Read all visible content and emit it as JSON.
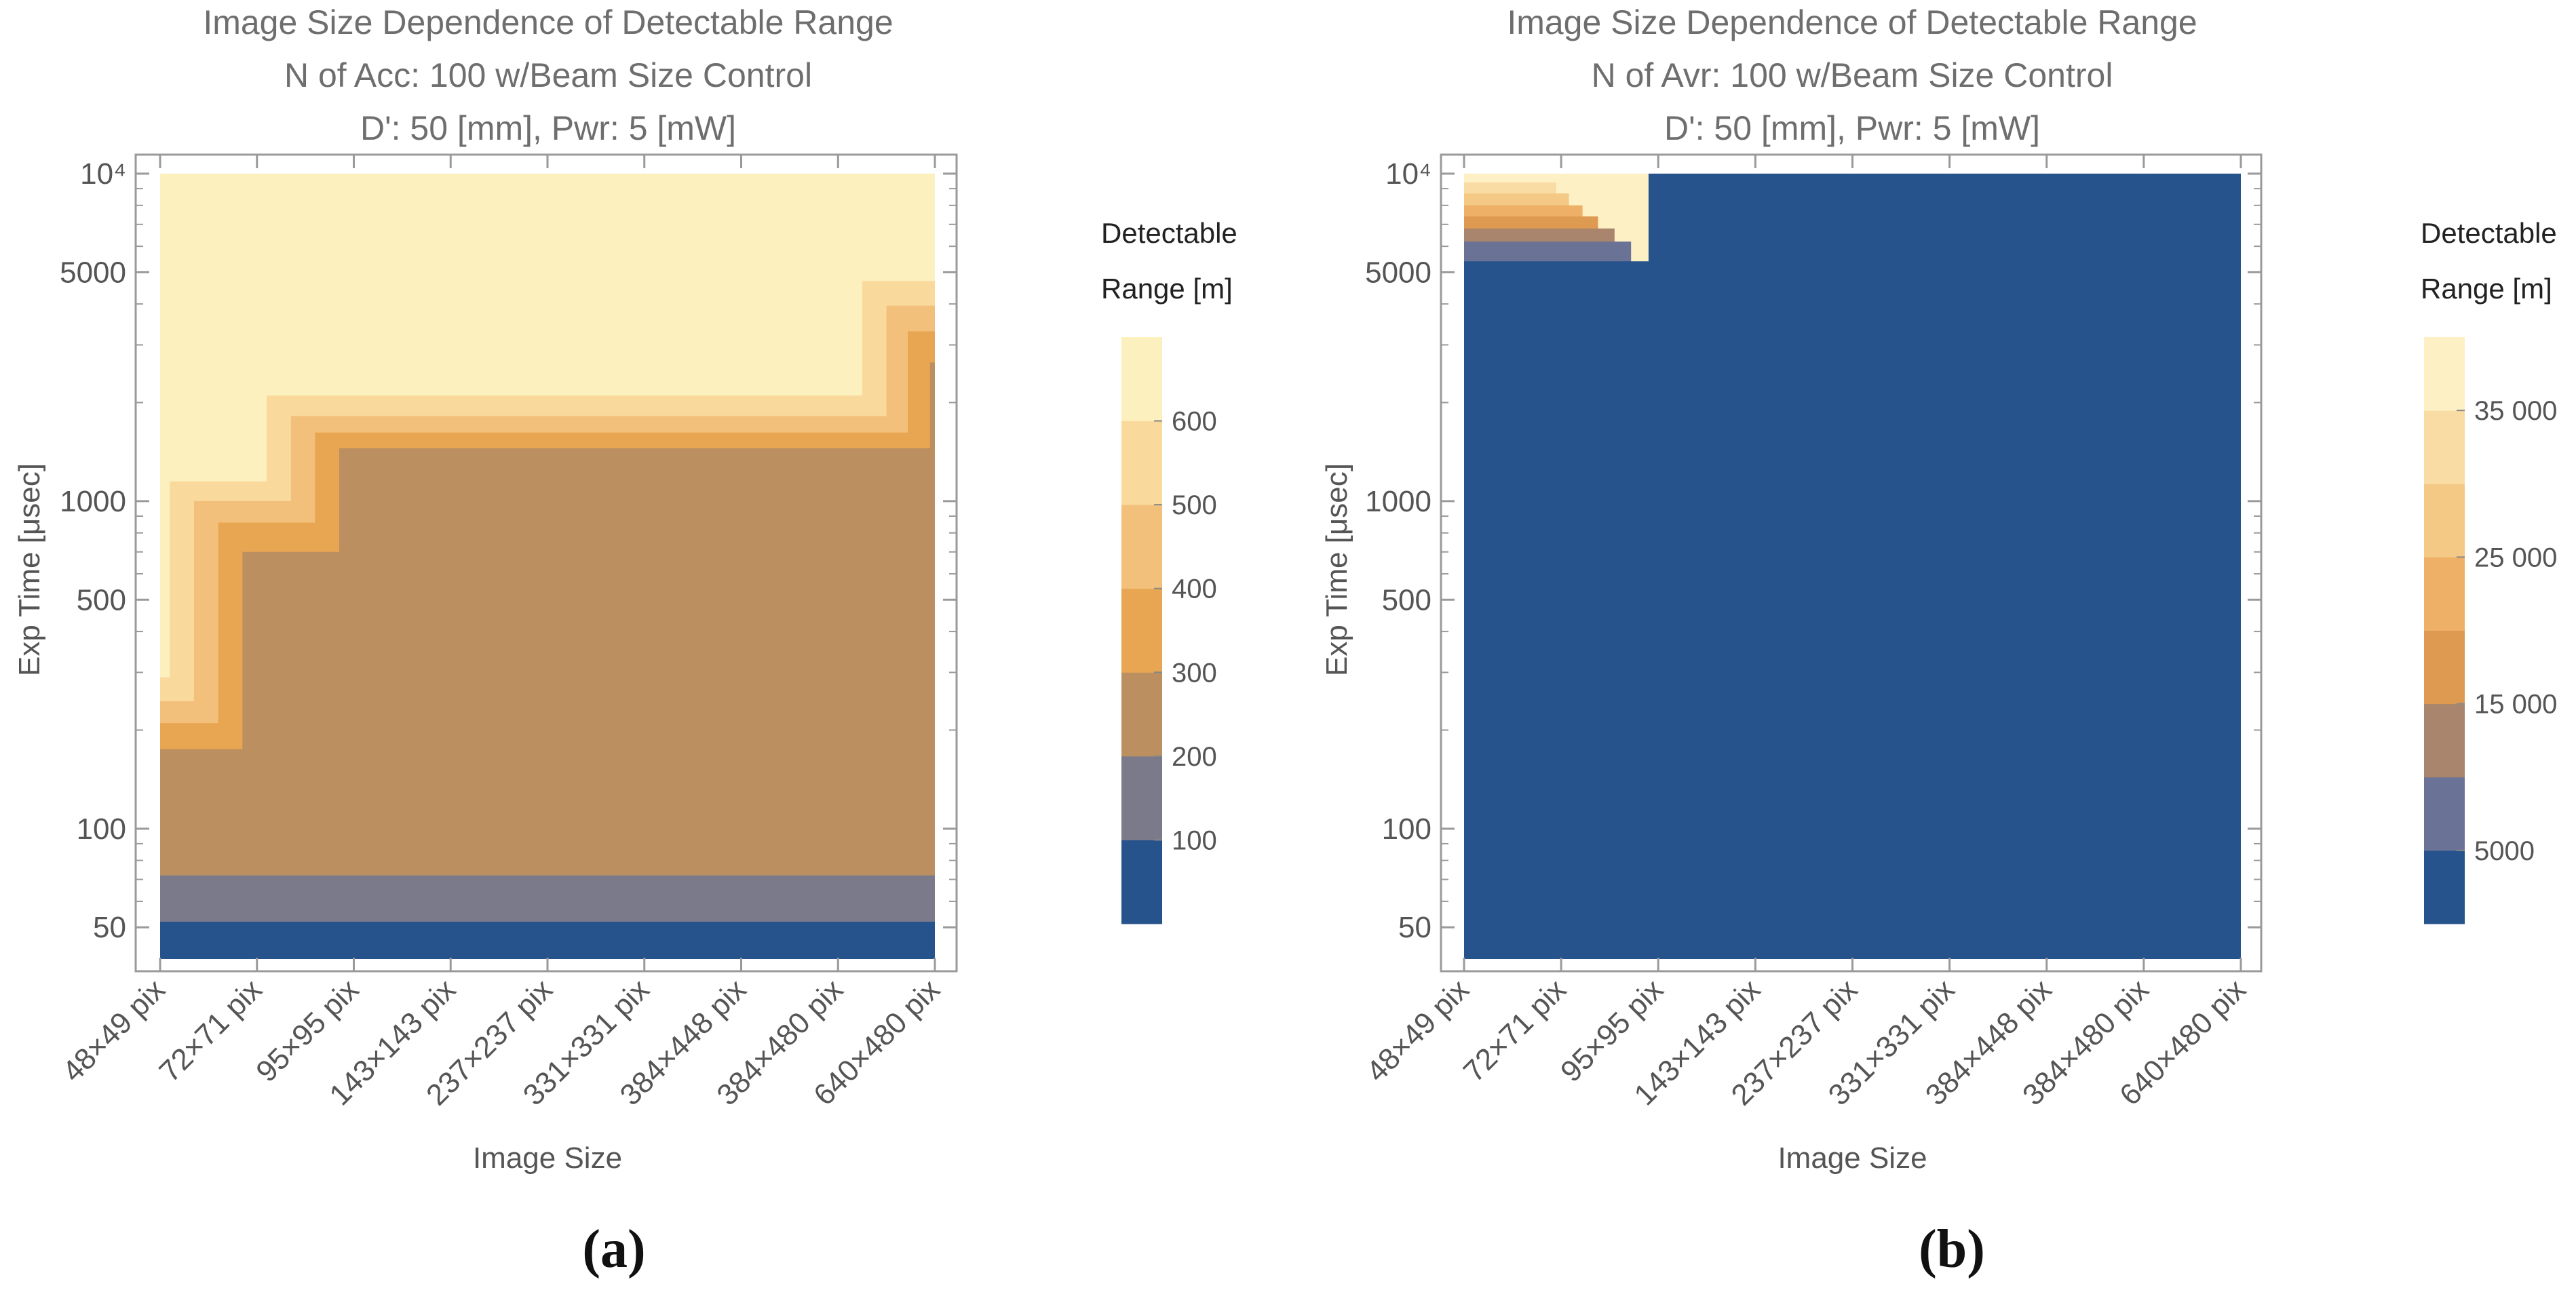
{
  "chart_data": [
    {
      "type": "contour",
      "panel_label": "(a)",
      "title": [
        "Image Size Dependence of Detectable Range",
        "N of Acc: 100 w/Beam Size Control",
        "D': 50 [mm], Pwr: 5 [mW]"
      ],
      "xlabel": "Image Size",
      "ylabel": "Exp Time [μsec]",
      "yscale": "log",
      "ylim": [
        40,
        10000
      ],
      "categories": [
        "48×49 pix",
        "72×71 pix",
        "95×95 pix",
        "143×143 pix",
        "237×237 pix",
        "331×331 pix",
        "384×448 pix",
        "384×480 pix",
        "640×480 pix"
      ],
      "y_ticks": [
        {
          "value": 50,
          "label": "50"
        },
        {
          "value": 100,
          "label": "100"
        },
        {
          "value": 500,
          "label": "500"
        },
        {
          "value": 1000,
          "label": "1000"
        },
        {
          "value": 5000,
          "label": "5000"
        },
        {
          "value": 10000,
          "label": "10⁴"
        }
      ],
      "legend": {
        "title": [
          "Detectable",
          "Range [m]"
        ],
        "levels": [
          0,
          100,
          200,
          300,
          400,
          500,
          600,
          700
        ],
        "tick_labels": [
          "100",
          "200",
          "300",
          "400",
          "500",
          "600"
        ],
        "colors": [
          "#27538c",
          "#7a7a8a",
          "#bb8f60",
          "#e8a552",
          "#f2c07a",
          "#f9d99c",
          "#fdf0bf"
        ]
      },
      "regions": [
        {
          "range": "0-100 m",
          "color": "#27538c",
          "boundary": [
            [
              0,
              52
            ],
            [
              8,
              52
            ]
          ]
        },
        {
          "range": "100-200 m",
          "color": "#7a7a8a",
          "boundary": [
            [
              0,
              72
            ],
            [
              8,
              72
            ]
          ]
        },
        {
          "range": "200-300 m",
          "color": "#bb8f60",
          "boundary": [
            [
              0,
              175
            ],
            [
              0.85,
              175
            ],
            [
              0.85,
              700
            ],
            [
              1.85,
              700
            ],
            [
              1.85,
              1450
            ],
            [
              7.95,
              1450
            ],
            [
              7.95,
              2650
            ],
            [
              8,
              2650
            ]
          ]
        },
        {
          "range": "300-400 m",
          "color": "#e8a552",
          "boundary": [
            [
              0,
              210
            ],
            [
              0.6,
              210
            ],
            [
              0.6,
              860
            ],
            [
              1.6,
              860
            ],
            [
              1.6,
              1620
            ],
            [
              7.72,
              1620
            ],
            [
              7.72,
              3300
            ],
            [
              8,
              3300
            ]
          ]
        },
        {
          "range": "400-500 m",
          "color": "#f2c07a",
          "boundary": [
            [
              0,
              245
            ],
            [
              0.35,
              245
            ],
            [
              0.35,
              1000
            ],
            [
              1.35,
              1000
            ],
            [
              1.35,
              1820
            ],
            [
              7.5,
              1820
            ],
            [
              7.5,
              3950
            ],
            [
              8,
              3950
            ]
          ]
        },
        {
          "range": "500-600 m",
          "color": "#f9d99c",
          "boundary": [
            [
              0,
              290
            ],
            [
              0.1,
              290
            ],
            [
              0.1,
              1150
            ],
            [
              1.1,
              1150
            ],
            [
              1.1,
              2100
            ],
            [
              7.25,
              2100
            ],
            [
              7.25,
              4700
            ],
            [
              8,
              4700
            ]
          ]
        },
        {
          "range": "600-700 m",
          "color": "#fdf0bf",
          "boundary": [
            [
              0,
              10000
            ],
            [
              8,
              10000
            ]
          ]
        }
      ]
    },
    {
      "type": "contour",
      "panel_label": "(b)",
      "title": [
        "Image Size Dependence of Detectable Range",
        "N of Avr: 100 w/Beam Size Control",
        "D': 50 [mm], Pwr: 5 [mW]"
      ],
      "xlabel": "Image Size",
      "ylabel": "Exp Time [μsec]",
      "yscale": "log",
      "ylim": [
        40,
        10000
      ],
      "categories": [
        "48×49 pix",
        "72×71 pix",
        "95×95 pix",
        "143×143 pix",
        "237×237 pix",
        "331×331 pix",
        "384×448 pix",
        "384×480 pix",
        "640×480 pix"
      ],
      "y_ticks": [
        {
          "value": 50,
          "label": "50"
        },
        {
          "value": 100,
          "label": "100"
        },
        {
          "value": 500,
          "label": "500"
        },
        {
          "value": 1000,
          "label": "1000"
        },
        {
          "value": 5000,
          "label": "5000"
        },
        {
          "value": 10000,
          "label": "10⁴"
        }
      ],
      "legend": {
        "title": [
          "Detectable",
          "Range [m]"
        ],
        "levels": [
          0,
          5000,
          10000,
          15000,
          20000,
          25000,
          30000,
          35000,
          40000
        ],
        "tick_labels": [
          "5000",
          "15 000",
          "25 000",
          "35 000"
        ],
        "tick_values": [
          5000,
          15000,
          25000,
          35000
        ],
        "colors": [
          "#27538c",
          "#6a7396",
          "#a8856c",
          "#df9a52",
          "#eeb066",
          "#f4c885",
          "#f9dca3",
          "#fdf0c4"
        ]
      },
      "regions": [
        {
          "range": "0-5000 m",
          "color": "#27538c",
          "boundary": [
            [
              0,
              5400
            ],
            [
              1.9,
              5400
            ],
            [
              1.9,
              10000
            ],
            [
              8,
              10000
            ]
          ]
        },
        {
          "range": "5000-10000 m",
          "color": "#6a7396",
          "boundary": [
            [
              0,
              6200
            ],
            [
              1.72,
              6200
            ],
            [
              1.72,
              10000
            ]
          ]
        },
        {
          "range": "10000-15000 m",
          "color": "#a8856c",
          "boundary": [
            [
              0,
              6800
            ],
            [
              1.55,
              6800
            ],
            [
              1.55,
              10000
            ]
          ]
        },
        {
          "range": "15000-20000 m",
          "color": "#df9a52",
          "boundary": [
            [
              0,
              7400
            ],
            [
              1.38,
              7400
            ],
            [
              1.38,
              10000
            ]
          ]
        },
        {
          "range": "20000-25000 m",
          "color": "#eeb066",
          "boundary": [
            [
              0,
              8000
            ],
            [
              1.22,
              8000
            ],
            [
              1.22,
              10000
            ]
          ]
        },
        {
          "range": "25000-30000 m",
          "color": "#f4c885",
          "boundary": [
            [
              0,
              8700
            ],
            [
              1.08,
              8700
            ],
            [
              1.08,
              10000
            ]
          ]
        },
        {
          "range": "30000-35000 m",
          "color": "#f9dca3",
          "boundary": [
            [
              0,
              9400
            ],
            [
              0.95,
              9400
            ],
            [
              0.95,
              10000
            ]
          ]
        },
        {
          "range": "35000-40000 m",
          "color": "#fdf0c4",
          "boundary": [
            [
              0,
              10000
            ],
            [
              0.8,
              10000
            ]
          ]
        }
      ]
    }
  ]
}
